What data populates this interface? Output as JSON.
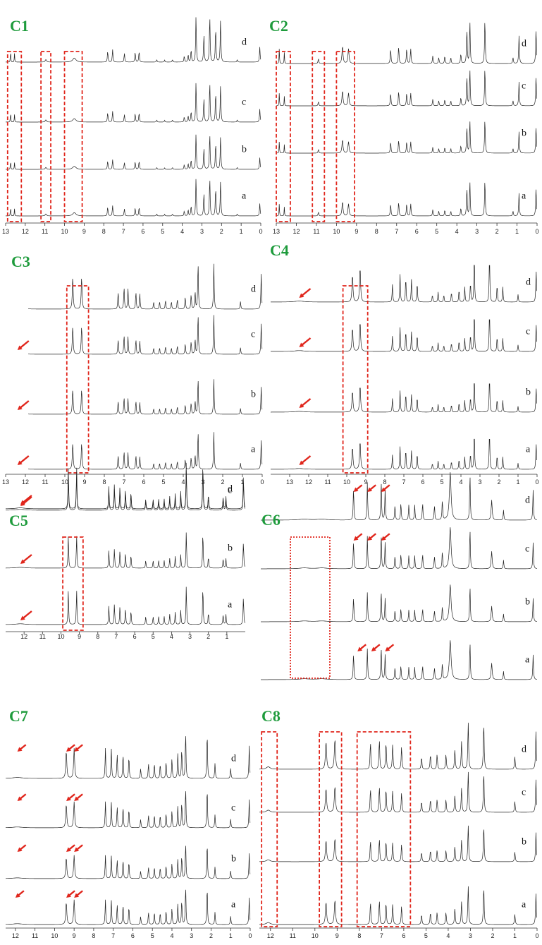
{
  "chart_data": {
    "type": "line",
    "description": "",
    "colors": {
      "trace": "#222222",
      "box": "#e0261c",
      "arrow": "#e0261c",
      "label": "#1e9b3c"
    },
    "trace_labels": [
      "a",
      "b",
      "c",
      "d"
    ],
    "panels": [
      {
        "label": "C1",
        "xlim": [
          13,
          0
        ],
        "ticks": [
          "13",
          "12",
          "11",
          "10",
          "9",
          "8",
          "7",
          "6",
          "5",
          "4",
          "3",
          "2",
          "1",
          "0"
        ],
        "boxes": [
          [
            12.9,
            12.2
          ],
          [
            11.2,
            10.7
          ],
          [
            10.0,
            9.1
          ]
        ],
        "arrows": []
      },
      {
        "label": "C2",
        "xlim": [
          13,
          0
        ],
        "ticks": [
          "13",
          "12",
          "11",
          "10",
          "9",
          "8",
          "7",
          "6",
          "5",
          "4",
          "3",
          "2",
          "1",
          "0"
        ],
        "boxes": [
          [
            13.0,
            12.3
          ],
          [
            11.2,
            10.6
          ],
          [
            10.0,
            9.1
          ]
        ],
        "arrows": []
      },
      {
        "label": "C3",
        "xlim": [
          13,
          0
        ],
        "ticks": [
          "13",
          "12",
          "11",
          "10",
          "9",
          "8",
          "7",
          "6",
          "5",
          "4",
          "3",
          "2",
          "1",
          "0"
        ],
        "boxes": [
          [
            9.9,
            8.8
          ]
        ],
        "arrows": [
          [
            12.4,
            "c"
          ],
          [
            12.4,
            "b"
          ],
          [
            12.4,
            "a"
          ]
        ]
      },
      {
        "label": "C4",
        "xlim": [
          14,
          0
        ],
        "ticks": [
          "13",
          "12",
          "11",
          "10",
          "9",
          "8",
          "7",
          "6",
          "5",
          "4",
          "3",
          "2",
          "1",
          "0"
        ],
        "boxes": [
          [
            10.2,
            8.9
          ]
        ],
        "arrows": [
          [
            12.5,
            "d"
          ],
          [
            12.5,
            "c"
          ],
          [
            12.5,
            "b"
          ],
          [
            12.5,
            "a"
          ]
        ]
      },
      {
        "label": "C5",
        "xlim": [
          13,
          0
        ],
        "ticks": [
          "12",
          "11",
          "10",
          "9",
          "8",
          "7",
          "6",
          "5",
          "4",
          "3",
          "2",
          "1"
        ],
        "boxes": [
          [
            9.9,
            8.8
          ]
        ],
        "arrows": [
          [
            12.2,
            "d"
          ],
          [
            12.2,
            "c"
          ],
          [
            12.2,
            "b"
          ],
          [
            12.2,
            "a"
          ]
        ]
      },
      {
        "label": "C6",
        "xlim": [
          14,
          0
        ],
        "ticks": [],
        "boxes": [
          [
            12.5,
            10.5
          ]
        ],
        "arrows": [
          [
            9.3,
            "d"
          ],
          [
            8.6,
            "d"
          ],
          [
            7.9,
            "d"
          ],
          [
            9.3,
            "c"
          ],
          [
            8.6,
            "c"
          ],
          [
            7.9,
            "c"
          ],
          [
            9.1,
            "a"
          ],
          [
            8.4,
            "a"
          ],
          [
            7.7,
            "a"
          ]
        ]
      },
      {
        "label": "C7",
        "xlim": [
          12.5,
          0
        ],
        "ticks": [
          "12",
          "11",
          "10",
          "9",
          "8",
          "7",
          "6",
          "5",
          "4",
          "3",
          "2",
          "1",
          "0"
        ],
        "boxes": [],
        "arrows": [
          [
            11.9,
            "d"
          ],
          [
            9.4,
            "d"
          ],
          [
            9.0,
            "d"
          ],
          [
            11.9,
            "c"
          ],
          [
            9.4,
            "c"
          ],
          [
            9.0,
            "c"
          ],
          [
            11.9,
            "b"
          ],
          [
            9.4,
            "b"
          ],
          [
            9.0,
            "b"
          ],
          [
            12.0,
            "a"
          ],
          [
            9.4,
            "a"
          ],
          [
            9.0,
            "a"
          ]
        ]
      },
      {
        "label": "C8",
        "xlim": [
          12.5,
          0
        ],
        "ticks": [
          "12",
          "11",
          "10",
          "9",
          "8",
          "7",
          "6",
          "5",
          "4",
          "3",
          "2",
          "1",
          "0"
        ],
        "boxes": [
          [
            12.4,
            11.7
          ],
          [
            9.8,
            8.8
          ],
          [
            8.1,
            5.7
          ]
        ],
        "arrows": []
      }
    ]
  }
}
